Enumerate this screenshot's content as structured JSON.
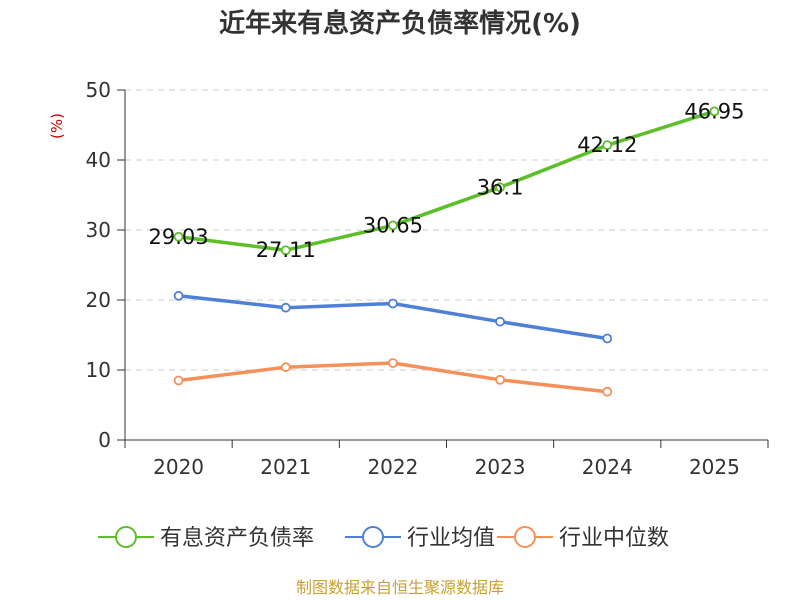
{
  "chart_data": {
    "type": "line",
    "title": "近年来有息资产负债率情况(%)",
    "ylabel": "(%)",
    "xlabel": "",
    "categories": [
      "2020",
      "2021",
      "2022",
      "2023",
      "2024",
      "2025"
    ],
    "ylim": [
      0,
      50
    ],
    "yticks": [
      0,
      10,
      20,
      30,
      40,
      50
    ],
    "grid": true,
    "legend_position": "bottom",
    "series": [
      {
        "name": "有息资产负债率",
        "color": "#5cbf2a",
        "values": [
          29.03,
          27.11,
          30.65,
          36.1,
          42.12,
          46.95
        ],
        "labels": [
          "29.03",
          "27.11",
          "30.65",
          "36.1",
          "42.12",
          "46.95"
        ]
      },
      {
        "name": "行业均值",
        "color": "#4f80d8",
        "values": [
          20.6,
          18.9,
          19.5,
          16.9,
          14.5,
          null
        ]
      },
      {
        "name": "行业中位数",
        "color": "#f5905a",
        "values": [
          8.5,
          10.4,
          11.0,
          8.6,
          6.9,
          null
        ]
      }
    ],
    "source": "制图数据来自恒生聚源数据库"
  }
}
